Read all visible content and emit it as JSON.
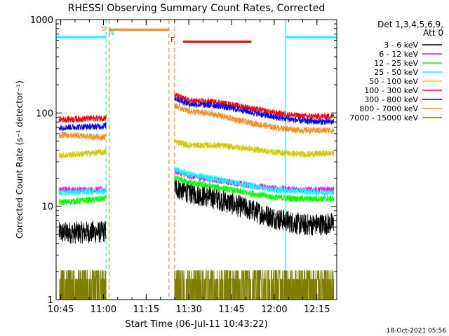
{
  "chart_data": {
    "type": "line",
    "title": "RHESSI Observing Summary Count Rates, Corrected",
    "xlabel": "Start Time (06-Jul-11 10:43:22)",
    "ylabel": "Corrected Count Rate (s⁻¹ detector⁻¹)",
    "yscale": "log",
    "ylim": [
      1,
      1000
    ],
    "xlim_minutes_after_10_43_22": [
      0,
      98.6
    ],
    "x_ticks": [
      "10:45",
      "11:00",
      "11:15",
      "11:30",
      "11:45",
      "12:00",
      "12:15"
    ],
    "y_ticks": [
      "1",
      "10",
      "100",
      "1000"
    ],
    "legend_header": [
      "Det 1,3,4,5,6,9,",
      "Att 0"
    ],
    "legend_position": "right",
    "timestamp": "18-Oct-2021 05:56",
    "flags": [
      {
        "label": "S",
        "color": "#ff8c1a",
        "at": "11:00:50"
      },
      {
        "label": "N",
        "color": "#00c8ff",
        "at": "11:00:55"
      },
      {
        "label": "F",
        "color": "#ff0000",
        "at": "11:25:00"
      }
    ],
    "intervals": [
      {
        "name": "night",
        "color": "#00ffff",
        "segments": [
          [
            "10:43:22",
            "11:00:55"
          ],
          [
            "12:04:00",
            "12:22:00"
          ]
        ],
        "level": 650
      },
      {
        "name": "saa",
        "color": "#ff8c1a",
        "segments": [
          [
            "11:02:00",
            "11:23:00"
          ]
        ],
        "level": 780
      },
      {
        "name": "flare",
        "color": "#ff0000",
        "segments": [
          [
            "11:28:00",
            "11:52:00"
          ]
        ],
        "level": 580
      }
    ],
    "data_gap": [
      "11:00:55",
      "11:25:00"
    ],
    "series": [
      {
        "name": "3 - 6 keV",
        "color": "#000000",
        "x": [
          "10:45",
          "11:00",
          "11:25",
          "11:30",
          "11:40",
          "11:50",
          "12:00",
          "12:10",
          "12:20"
        ],
        "y": [
          5.2,
          5.3,
          16,
          14,
          12,
          9.5,
          7.5,
          6.3,
          6.5
        ]
      },
      {
        "name": "6 - 12 keV",
        "color": "#ff00ff",
        "x": [
          "10:45",
          "11:00",
          "11:25",
          "11:30",
          "11:40",
          "11:50",
          "12:00",
          "12:10",
          "12:20"
        ],
        "y": [
          15,
          15,
          24,
          21,
          19,
          17,
          15.5,
          15,
          15
        ]
      },
      {
        "name": "12 - 25 keV",
        "color": "#00ff00",
        "x": [
          "10:45",
          "11:00",
          "11:25",
          "11:30",
          "11:40",
          "11:50",
          "12:00",
          "12:10",
          "12:20"
        ],
        "y": [
          11,
          12,
          20,
          18,
          16,
          14,
          12.5,
          12,
          12
        ]
      },
      {
        "name": "25 - 50 keV",
        "color": "#00ffff",
        "x": [
          "10:45",
          "11:00",
          "11:25",
          "11:30",
          "11:40",
          "11:50",
          "12:00",
          "12:10",
          "12:20"
        ],
        "y": [
          14,
          14.5,
          25,
          22,
          19.5,
          17,
          15,
          14.5,
          14
        ]
      },
      {
        "name": "50 - 100 keV",
        "color": "#cccc00",
        "x": [
          "10:45",
          "11:00",
          "11:25",
          "11:30",
          "11:40",
          "11:50",
          "12:00",
          "12:10",
          "12:20"
        ],
        "y": [
          35,
          38,
          50,
          45,
          45,
          42,
          38,
          36,
          37
        ]
      },
      {
        "name": "100 - 300 keV",
        "color": "#ff0000",
        "x": [
          "10:45",
          "11:00",
          "11:25",
          "11:30",
          "11:40",
          "11:50",
          "12:00",
          "12:10",
          "12:20"
        ],
        "y": [
          85,
          88,
          155,
          135,
          130,
          115,
          100,
          92,
          92
        ]
      },
      {
        "name": "300 - 800 keV",
        "color": "#0000ff",
        "x": [
          "10:45",
          "11:00",
          "11:25",
          "11:30",
          "11:40",
          "11:50",
          "12:00",
          "12:10",
          "12:20"
        ],
        "y": [
          70,
          72,
          145,
          125,
          120,
          105,
          90,
          82,
          80
        ]
      },
      {
        "name": "800 - 7000 keV",
        "color": "#ff8c1a",
        "x": [
          "10:45",
          "11:00",
          "11:25",
          "11:30",
          "11:40",
          "11:50",
          "12:00",
          "12:10",
          "12:20"
        ],
        "y": [
          58,
          55,
          120,
          105,
          95,
          80,
          70,
          65,
          65
        ]
      },
      {
        "name": "7000 - 15000 keV",
        "color": "#808000",
        "x": [
          "10:45",
          "11:00",
          "11:25",
          "11:30",
          "11:40",
          "11:50",
          "12:00",
          "12:10",
          "12:20"
        ],
        "y": [
          1.6,
          1.7,
          1.5,
          1.5,
          2.1,
          1.7,
          1.5,
          1.5,
          1.6
        ]
      }
    ]
  }
}
